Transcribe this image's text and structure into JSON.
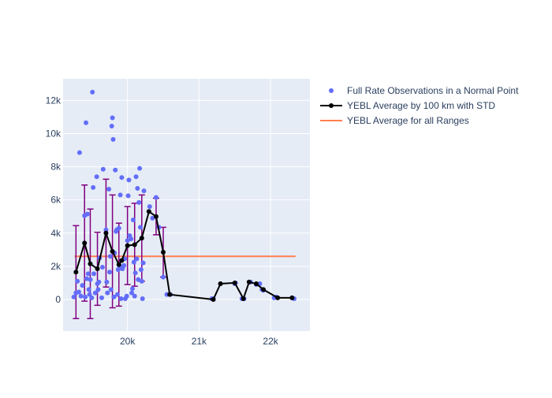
{
  "chart_data": {
    "type": "scatter",
    "title": "",
    "xlabel": "",
    "ylabel": "",
    "xlim": [
      19100,
      22550
    ],
    "ylim": [
      -1900,
      13300
    ],
    "x_ticks": [
      20000,
      21000,
      22000
    ],
    "x_tick_labels": [
      "20k",
      "21k",
      "22k"
    ],
    "y_ticks": [
      0,
      2000,
      4000,
      6000,
      8000,
      10000,
      12000
    ],
    "y_tick_labels": [
      "0",
      "2k",
      "4k",
      "6k",
      "8k",
      "10k",
      "12k"
    ],
    "grid": true,
    "legend_position": "top-right",
    "colors": {
      "plot_background": "#E5ECF6",
      "observations": "#636EFA",
      "average": "#000000",
      "error_bars": "#800080",
      "overall_average": "#FF7F50"
    },
    "series": [
      {
        "name": "Full Rate Observations in a Normal Point",
        "kind": "markers",
        "points": [
          [
            19250,
            150
          ],
          [
            19280,
            400
          ],
          [
            19300,
            1100
          ],
          [
            19320,
            450
          ],
          [
            19330,
            8850
          ],
          [
            19350,
            200
          ],
          [
            19370,
            850
          ],
          [
            19400,
            5050
          ],
          [
            19410,
            150
          ],
          [
            19420,
            10650
          ],
          [
            19430,
            1250
          ],
          [
            19440,
            5150
          ],
          [
            19450,
            1550
          ],
          [
            19460,
            600
          ],
          [
            19470,
            300
          ],
          [
            19480,
            1200
          ],
          [
            19500,
            100
          ],
          [
            19510,
            12500
          ],
          [
            19520,
            6750
          ],
          [
            19530,
            1550
          ],
          [
            19550,
            400
          ],
          [
            19570,
            7400
          ],
          [
            19580,
            950
          ],
          [
            19590,
            600
          ],
          [
            19600,
            1050
          ],
          [
            19610,
            2500
          ],
          [
            19640,
            100
          ],
          [
            19650,
            1950
          ],
          [
            19660,
            7850
          ],
          [
            19700,
            4200
          ],
          [
            19710,
            1050
          ],
          [
            19720,
            400
          ],
          [
            19740,
            6650
          ],
          [
            19750,
            1650
          ],
          [
            19760,
            2600
          ],
          [
            19770,
            600
          ],
          [
            19780,
            10450
          ],
          [
            19790,
            10950
          ],
          [
            19800,
            9650
          ],
          [
            19810,
            150
          ],
          [
            19820,
            2800
          ],
          [
            19830,
            7800
          ],
          [
            19840,
            4100
          ],
          [
            19850,
            4200
          ],
          [
            19860,
            300
          ],
          [
            19870,
            1800
          ],
          [
            19880,
            4300
          ],
          [
            19890,
            2000
          ],
          [
            19900,
            6300
          ],
          [
            19910,
            50
          ],
          [
            19920,
            7350
          ],
          [
            19930,
            1850
          ],
          [
            19950,
            2050
          ],
          [
            19960,
            2450
          ],
          [
            19970,
            50
          ],
          [
            19990,
            200
          ],
          [
            20000,
            3550
          ],
          [
            20010,
            6250
          ],
          [
            20020,
            7200
          ],
          [
            20030,
            3850
          ],
          [
            20050,
            3650
          ],
          [
            20060,
            400
          ],
          [
            20070,
            650
          ],
          [
            20080,
            4800
          ],
          [
            20090,
            2250
          ],
          [
            20100,
            200
          ],
          [
            20110,
            1600
          ],
          [
            20120,
            7400
          ],
          [
            20130,
            2450
          ],
          [
            20140,
            6700
          ],
          [
            20150,
            1200
          ],
          [
            20160,
            5850
          ],
          [
            20170,
            7900
          ],
          [
            20180,
            4350
          ],
          [
            20190,
            1800
          ],
          [
            20200,
            1100
          ],
          [
            20210,
            50
          ],
          [
            20220,
            2200
          ],
          [
            20230,
            6550
          ],
          [
            20300,
            5300
          ],
          [
            20310,
            5600
          ],
          [
            20350,
            4900
          ],
          [
            20400,
            6150
          ],
          [
            20440,
            4350
          ],
          [
            20500,
            1350
          ],
          [
            20550,
            300
          ],
          [
            20600,
            300
          ],
          [
            21180,
            50
          ],
          [
            21200,
            50
          ],
          [
            21300,
            950
          ],
          [
            21500,
            950
          ],
          [
            21510,
            1000
          ],
          [
            21600,
            50
          ],
          [
            21630,
            50
          ],
          [
            21700,
            1050
          ],
          [
            21720,
            1050
          ],
          [
            21800,
            900
          ],
          [
            21850,
            950
          ],
          [
            21880,
            600
          ],
          [
            21900,
            550
          ],
          [
            22050,
            100
          ],
          [
            22080,
            150
          ],
          [
            22300,
            100
          ],
          [
            22330,
            50
          ]
        ]
      },
      {
        "name": "YEBL Average by 100 km with STD",
        "kind": "lines+markers",
        "points": [
          [
            19280,
            1650,
            2800
          ],
          [
            19400,
            3400,
            3500
          ],
          [
            19480,
            2150,
            3300
          ],
          [
            19580,
            1850,
            2200
          ],
          [
            19700,
            4000,
            3250
          ],
          [
            19790,
            2900,
            3400
          ],
          [
            19880,
            2100,
            2500
          ],
          [
            19920,
            2350,
            0
          ],
          [
            20000,
            3250,
            2350
          ],
          [
            20100,
            3300,
            2500
          ],
          [
            20200,
            3700,
            2600
          ],
          [
            20300,
            5300,
            0
          ],
          [
            20400,
            5000,
            1100
          ],
          [
            20500,
            2850,
            1500
          ],
          [
            20590,
            300,
            0
          ],
          [
            21200,
            0,
            0
          ],
          [
            21300,
            950,
            0
          ],
          [
            21500,
            1000,
            0
          ],
          [
            21620,
            50,
            0
          ],
          [
            21700,
            1050,
            0
          ],
          [
            21800,
            950,
            0
          ],
          [
            21900,
            600,
            0
          ],
          [
            22100,
            100,
            0
          ],
          [
            22300,
            100,
            0
          ]
        ]
      },
      {
        "name": "YEBL Average for all Ranges",
        "kind": "line",
        "points": [
          [
            19260,
            2600
          ],
          [
            22350,
            2600
          ]
        ]
      }
    ]
  }
}
